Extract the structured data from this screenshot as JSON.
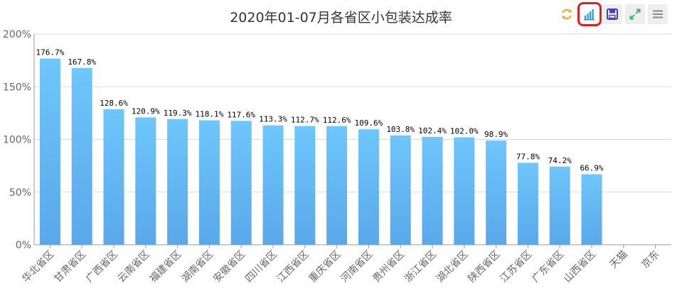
{
  "chart_data": {
    "type": "bar",
    "title": "2020年01-07月各省区小包装达成率",
    "categories": [
      "华北省区",
      "甘肃省区",
      "广西省区",
      "云南省区",
      "福建省区",
      "湖南省区",
      "安徽省区",
      "四川省区",
      "江西省区",
      "重庆省区",
      "河南省区",
      "贵州省区",
      "浙江省区",
      "湖北省区",
      "陕西省区",
      "江苏省区",
      "广东省区",
      "山西省区",
      "天猫",
      "京东"
    ],
    "values": [
      176.7,
      167.8,
      128.6,
      120.9,
      119.3,
      118.1,
      117.6,
      113.3,
      112.7,
      112.6,
      109.6,
      103.8,
      102.4,
      102.0,
      98.9,
      77.8,
      74.2,
      66.9,
      null,
      null
    ],
    "value_labels": [
      "176.7%",
      "167.8%",
      "128.6%",
      "120.9%",
      "119.3%",
      "118.1%",
      "117.6%",
      "113.3%",
      "112.7%",
      "112.6%",
      "109.6%",
      "103.8%",
      "102.4%",
      "102.0%",
      "98.9%",
      "77.8%",
      "74.2%",
      "66.9%",
      "",
      ""
    ],
    "yticks": [
      {
        "value": 0,
        "label": "0%"
      },
      {
        "value": 50,
        "label": "50%"
      },
      {
        "value": 100,
        "label": "100%"
      },
      {
        "value": 150,
        "label": "150%"
      },
      {
        "value": 200,
        "label": "200%"
      }
    ],
    "ylim": [
      0,
      200
    ],
    "grid": true,
    "bar_color_top": "#6ec6fb",
    "bar_color_bottom": "#5aa8ea"
  },
  "toolbar": {
    "tools": [
      {
        "name": "refresh-icon",
        "color": "#f5a623"
      },
      {
        "name": "bar-chart-icon",
        "color": "#1e9be0",
        "active": true
      },
      {
        "name": "save-icon",
        "color": "#4b3fb8"
      },
      {
        "name": "fullscreen-icon",
        "color": "#2cbf6b"
      },
      {
        "name": "menu-icon",
        "color": "#888888"
      }
    ]
  }
}
